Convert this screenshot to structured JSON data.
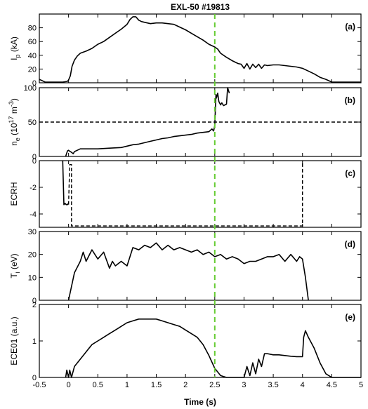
{
  "chart_data": {
    "type": "line",
    "title": "EXL-50 #19813",
    "xlabel": "Time (s)",
    "xlim": [
      -0.5,
      5
    ],
    "xticks": [
      -0.5,
      0,
      0.5,
      1,
      1.5,
      2,
      2.5,
      3,
      3.5,
      4,
      4.5,
      5
    ],
    "xtick_labels": [
      "-0.5",
      "0",
      "0.5",
      "1",
      "1.5",
      "2",
      "2.5",
      "3",
      "3.5",
      "4",
      "4.5",
      "5"
    ],
    "vertical_marker": {
      "x": 2.5,
      "color": "#66cc33",
      "style": "dashed"
    },
    "panels": [
      {
        "id": "a",
        "panel_label": "(a)",
        "ylabel": "I",
        "ylabel_sub": "p",
        "ylabel_unit": " (kA)",
        "ylim": [
          0,
          100
        ],
        "yticks": [
          0,
          20,
          40,
          60,
          80
        ],
        "ytick_labels": [
          "0",
          "20",
          "40",
          "60",
          "80"
        ],
        "series": [
          {
            "x": [
              -0.5,
              -0.4,
              -0.3,
              -0.2,
              -0.1,
              -0.02,
              0.0,
              0.03,
              0.06,
              0.1,
              0.15,
              0.2,
              0.3,
              0.4,
              0.5,
              0.6,
              0.7,
              0.8,
              0.9,
              1.0,
              1.05,
              1.1,
              1.15,
              1.2,
              1.25,
              1.3,
              1.4,
              1.5,
              1.6,
              1.7,
              1.8,
              1.9,
              2.0,
              2.1,
              2.2,
              2.3,
              2.4,
              2.5,
              2.55,
              2.6,
              2.7,
              2.8,
              2.9,
              2.95,
              3.0,
              3.05,
              3.1,
              3.15,
              3.2,
              3.25,
              3.3,
              3.35,
              3.4,
              3.5,
              3.6,
              3.7,
              3.8,
              3.9,
              4.0,
              4.1,
              4.2,
              4.3,
              4.4,
              4.5,
              4.6,
              4.7,
              4.8,
              4.9,
              5.0
            ],
            "y": [
              5,
              1,
              1,
              1,
              1,
              2,
              4,
              10,
              24,
              33,
              39,
              43,
              46,
              50,
              56,
              60,
              66,
              72,
              78,
              85,
              92,
              96,
              96,
              91,
              89,
              88,
              86,
              87,
              87,
              86,
              85,
              81,
              77,
              72,
              67,
              62,
              56,
              52,
              49,
              43,
              37,
              32,
              28,
              27,
              21,
              28,
              20,
              27,
              22,
              27,
              21,
              26,
              25,
              26,
              26,
              25,
              24,
              23,
              21,
              17,
              13,
              8,
              5,
              1,
              1,
              1,
              1,
              1,
              1
            ]
          }
        ]
      },
      {
        "id": "b",
        "panel_label": "(b)",
        "ylabel": "n",
        "ylabel_sub": "e",
        "ylabel_unit": " (10",
        "ylabel_sup": "17",
        "ylabel_unit2": " m",
        "ylabel_sup2": "-3",
        "ylabel_end": ")",
        "ylim": [
          0,
          100
        ],
        "yticks": [
          0,
          50,
          100
        ],
        "ytick_labels": [
          "0",
          "50",
          "100"
        ],
        "reference_line": {
          "y": 50,
          "style": "dashed"
        },
        "series": [
          {
            "x": [
              -0.05,
              -0.02,
              0.0,
              0.03,
              0.05,
              0.08,
              0.1,
              0.15,
              0.2,
              0.3,
              0.5,
              0.7,
              0.9,
              1.0,
              1.1,
              1.2,
              1.3,
              1.4,
              1.5,
              1.6,
              1.7,
              1.8,
              1.9,
              2.0,
              2.1,
              2.2,
              2.3,
              2.4,
              2.45,
              2.48,
              2.5,
              2.52,
              2.53,
              2.55,
              2.57,
              2.6,
              2.62,
              2.65,
              2.7,
              2.72,
              2.75
            ],
            "y": [
              0,
              8,
              9,
              7,
              6,
              4,
              7,
              9,
              11,
              11,
              11,
              12,
              13,
              15,
              17,
              18,
              20,
              22,
              24,
              26,
              27,
              29,
              30,
              31,
              32,
              34,
              35,
              36,
              40,
              37,
              45,
              90,
              85,
              92,
              80,
              75,
              78,
              74,
              76,
              100,
              92
            ]
          }
        ]
      },
      {
        "id": "c",
        "panel_label": "(c)",
        "ylabel": "ECRH",
        "ylim": [
          -5,
          0
        ],
        "yticks": [
          -4,
          -2,
          0
        ],
        "ytick_labels": [
          "-4",
          "-2",
          "0"
        ],
        "series": [
          {
            "x": [
              -0.1,
              -0.08,
              -0.06,
              -0.04,
              -0.02,
              0.0
            ],
            "y": [
              0,
              -3.3,
              -3.2,
              -3.3,
              -3.3,
              -3.2
            ],
            "style": "solid"
          },
          {
            "x": [
              0.0,
              0.02,
              0.05,
              0.05,
              4.0,
              4.0
            ],
            "y": [
              -3.3,
              -0.3,
              -0.3,
              -4.9,
              -4.9,
              0
            ],
            "style": "dashed"
          }
        ]
      },
      {
        "id": "d",
        "panel_label": "(d)",
        "ylabel": "T",
        "ylabel_sub": "i",
        "ylabel_unit": " (eV)",
        "ylim": [
          0,
          30
        ],
        "yticks": [
          0,
          10,
          20,
          30
        ],
        "ytick_labels": [
          "0",
          "10",
          "20",
          "30"
        ],
        "series": [
          {
            "x": [
              0.0,
              0.1,
              0.2,
              0.25,
              0.3,
              0.4,
              0.5,
              0.6,
              0.7,
              0.75,
              0.8,
              0.9,
              1.0,
              1.1,
              1.2,
              1.3,
              1.4,
              1.5,
              1.6,
              1.7,
              1.8,
              1.9,
              2.0,
              2.1,
              2.2,
              2.3,
              2.4,
              2.5,
              2.6,
              2.7,
              2.8,
              2.9,
              3.0,
              3.1,
              3.2,
              3.3,
              3.4,
              3.5,
              3.6,
              3.7,
              3.8,
              3.9,
              3.95,
              4.0,
              4.05,
              4.1
            ],
            "y": [
              0,
              12,
              17,
              21,
              17,
              22,
              18,
              21,
              14,
              17,
              15,
              17,
              15,
              23,
              22,
              24,
              23,
              25,
              22,
              24,
              22,
              23,
              22,
              21,
              22,
              20,
              21,
              19,
              20,
              18,
              19,
              18,
              16,
              17,
              17,
              18,
              19,
              19,
              20,
              17,
              20,
              17,
              19,
              18,
              10,
              0
            ]
          }
        ]
      },
      {
        "id": "e",
        "panel_label": "(e)",
        "ylabel": "ECE01 (a.u.)",
        "ylim": [
          0,
          2
        ],
        "yticks": [
          0,
          1,
          2
        ],
        "ytick_labels": [
          "0",
          "1",
          "2"
        ],
        "series": [
          {
            "x": [
              -0.05,
              -0.03,
              0.0,
              0.02,
              0.05,
              0.1,
              0.2,
              0.3,
              0.4,
              0.5,
              0.6,
              0.7,
              0.8,
              0.9,
              1.0,
              1.1,
              1.2,
              1.3,
              1.4,
              1.5,
              1.6,
              1.7,
              1.8,
              1.9,
              2.0,
              2.1,
              2.2,
              2.3,
              2.4,
              2.5,
              2.6,
              2.7,
              2.8,
              2.9,
              3.0,
              3.05,
              3.1,
              3.15,
              3.2,
              3.25,
              3.3,
              3.35,
              3.4,
              3.5,
              3.6,
              3.7,
              3.8,
              3.9,
              4.0,
              4.02,
              4.05,
              4.1,
              4.2,
              4.3,
              4.4,
              4.5,
              4.6,
              4.8,
              5.0
            ],
            "y": [
              0.0,
              0.2,
              0.0,
              0.2,
              0.0,
              0.3,
              0.5,
              0.7,
              0.9,
              1.0,
              1.1,
              1.2,
              1.3,
              1.4,
              1.5,
              1.55,
              1.6,
              1.6,
              1.6,
              1.6,
              1.55,
              1.5,
              1.45,
              1.4,
              1.3,
              1.2,
              1.1,
              0.9,
              0.6,
              0.25,
              0.05,
              0.0,
              0.0,
              0.0,
              0.0,
              0.3,
              0.05,
              0.4,
              0.1,
              0.5,
              0.3,
              0.65,
              0.65,
              0.62,
              0.62,
              0.6,
              0.58,
              0.57,
              0.57,
              1.1,
              1.28,
              1.1,
              0.8,
              0.4,
              0.1,
              0.0,
              0.0,
              0.0,
              0.0
            ]
          }
        ]
      }
    ]
  }
}
